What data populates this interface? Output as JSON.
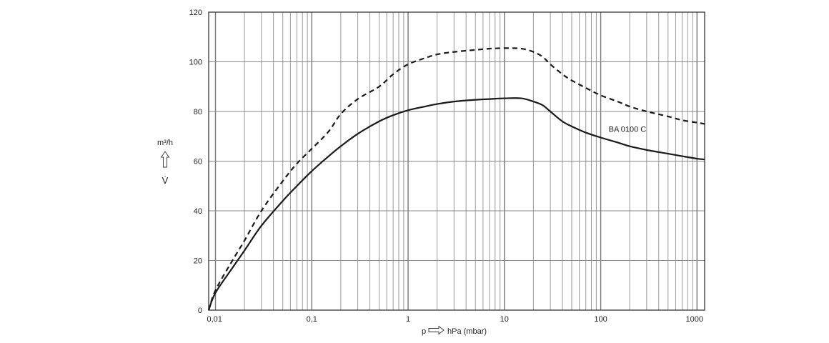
{
  "chart_data": {
    "type": "line",
    "x_scale": "log",
    "xlim": [
      0.0085,
      1200
    ],
    "ylim": [
      0,
      120
    ],
    "grid": true,
    "xticks": [
      {
        "value": 0.01,
        "label": "0,01"
      },
      {
        "value": 0.1,
        "label": "0,1"
      },
      {
        "value": 1,
        "label": "1"
      },
      {
        "value": 10,
        "label": "10"
      },
      {
        "value": 100,
        "label": "100"
      },
      {
        "value": 1000,
        "label": "1000"
      }
    ],
    "yticks": [
      {
        "value": 0,
        "label": "0"
      },
      {
        "value": 20,
        "label": "20"
      },
      {
        "value": 40,
        "label": "40"
      },
      {
        "value": 60,
        "label": "60"
      },
      {
        "value": 80,
        "label": "80"
      },
      {
        "value": 100,
        "label": "100"
      },
      {
        "value": 120,
        "label": "120"
      }
    ],
    "xlabel": {
      "prefix": "p",
      "suffix": "hPa (mbar)"
    },
    "ylabel": {
      "unit": "m³/h",
      "symbol": "V̇"
    },
    "annotation": {
      "text": "BA 0100 C",
      "x": 170,
      "y": 73
    },
    "series": [
      {
        "style": "solid",
        "points": [
          [
            0.0085,
            0
          ],
          [
            0.01,
            7
          ],
          [
            0.015,
            17
          ],
          [
            0.02,
            24
          ],
          [
            0.03,
            34
          ],
          [
            0.05,
            44
          ],
          [
            0.07,
            50
          ],
          [
            0.1,
            56
          ],
          [
            0.15,
            62
          ],
          [
            0.2,
            66
          ],
          [
            0.3,
            71
          ],
          [
            0.5,
            76
          ],
          [
            0.7,
            78.5
          ],
          [
            1,
            80.5
          ],
          [
            1.5,
            82
          ],
          [
            2,
            83
          ],
          [
            3,
            84
          ],
          [
            5,
            84.7
          ],
          [
            7,
            85
          ],
          [
            10,
            85.3
          ],
          [
            15,
            85.3
          ],
          [
            20,
            84
          ],
          [
            25,
            82.5
          ],
          [
            30,
            80
          ],
          [
            40,
            76
          ],
          [
            50,
            74
          ],
          [
            70,
            71.5
          ],
          [
            100,
            69.5
          ],
          [
            150,
            67.5
          ],
          [
            200,
            66
          ],
          [
            300,
            64.5
          ],
          [
            500,
            63
          ],
          [
            700,
            62
          ],
          [
            1000,
            61
          ],
          [
            1200,
            60.7
          ]
        ]
      },
      {
        "style": "dashed",
        "points": [
          [
            0.0085,
            0
          ],
          [
            0.01,
            8
          ],
          [
            0.015,
            20
          ],
          [
            0.02,
            28
          ],
          [
            0.03,
            40
          ],
          [
            0.05,
            52
          ],
          [
            0.07,
            59
          ],
          [
            0.1,
            65
          ],
          [
            0.15,
            72
          ],
          [
            0.2,
            79
          ],
          [
            0.3,
            85
          ],
          [
            0.5,
            90
          ],
          [
            0.7,
            95
          ],
          [
            1,
            99
          ],
          [
            1.5,
            101.5
          ],
          [
            2,
            103
          ],
          [
            3,
            104
          ],
          [
            5,
            104.8
          ],
          [
            7,
            105.3
          ],
          [
            10,
            105.5
          ],
          [
            15,
            105.3
          ],
          [
            20,
            104
          ],
          [
            25,
            102
          ],
          [
            30,
            99
          ],
          [
            40,
            95
          ],
          [
            50,
            92.5
          ],
          [
            70,
            89.5
          ],
          [
            100,
            86.5
          ],
          [
            150,
            84
          ],
          [
            200,
            82
          ],
          [
            300,
            80
          ],
          [
            500,
            78
          ],
          [
            700,
            76.5
          ],
          [
            1000,
            75.5
          ],
          [
            1200,
            75
          ]
        ]
      }
    ]
  }
}
